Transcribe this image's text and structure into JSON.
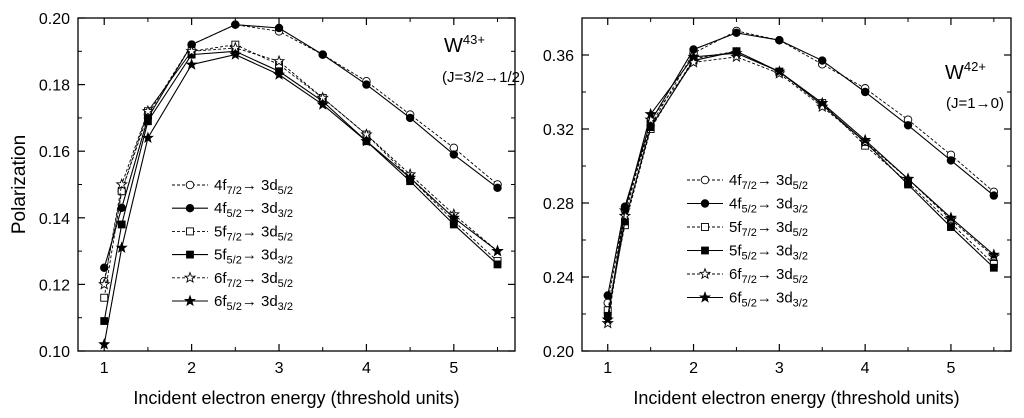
{
  "chart_data": [
    {
      "type": "line",
      "ylabel": "Polarization",
      "xlabel": "Incident electron energy (threshold units)",
      "ion_label": "W",
      "ion_charge": "43+",
      "transition_label": "(J=3/2→1/2)",
      "xlim": [
        0.7,
        5.7
      ],
      "ylim": [
        0.1,
        0.2
      ],
      "xticks": [
        "1",
        "2",
        "3",
        "4",
        "5"
      ],
      "yticks": [
        "0.10",
        "0.12",
        "0.14",
        "0.16",
        "0.18",
        "0.20"
      ],
      "grid": false,
      "legend_position": "bottom-left",
      "x": [
        1.0,
        1.2,
        1.5,
        2.0,
        2.5,
        3.0,
        3.5,
        4.0,
        4.5,
        5.0,
        5.5
      ],
      "series": [
        {
          "name": "4f7/2→ 3d5/2",
          "marker": "open-circle",
          "dashed": true,
          "values": [
            0.121,
            0.148,
            0.171,
            0.192,
            0.198,
            0.196,
            0.189,
            0.181,
            0.171,
            0.161,
            0.15
          ]
        },
        {
          "name": "4f5/2→ 3d3/2",
          "marker": "filled-circle",
          "dashed": false,
          "values": [
            0.125,
            0.143,
            0.17,
            0.192,
            0.198,
            0.197,
            0.189,
            0.18,
            0.17,
            0.159,
            0.149
          ]
        },
        {
          "name": "5f7/2→ 3d5/2",
          "marker": "open-square",
          "dashed": true,
          "values": [
            0.116,
            0.148,
            0.172,
            0.19,
            0.192,
            0.186,
            0.176,
            0.165,
            0.152,
            0.139,
            0.127
          ]
        },
        {
          "name": "5f5/2→ 3d3/2",
          "marker": "filled-square",
          "dashed": false,
          "values": [
            0.109,
            0.138,
            0.169,
            0.189,
            0.19,
            0.184,
            0.175,
            0.163,
            0.151,
            0.138,
            0.126
          ]
        },
        {
          "name": "6f7/2→ 3d5/2",
          "marker": "open-star",
          "dashed": true,
          "values": [
            0.12,
            0.15,
            0.172,
            0.19,
            0.191,
            0.187,
            0.176,
            0.165,
            0.153,
            0.141,
            0.13
          ]
        },
        {
          "name": "6f5/2→ 3d3/2",
          "marker": "filled-star",
          "dashed": false,
          "values": [
            0.102,
            0.131,
            0.164,
            0.186,
            0.189,
            0.183,
            0.174,
            0.163,
            0.152,
            0.14,
            0.13
          ]
        }
      ]
    },
    {
      "type": "line",
      "ylabel": "",
      "xlabel": "Incident electron energy (threshold units)",
      "ion_label": "W",
      "ion_charge": "42+",
      "transition_label": "(J=1→0)",
      "xlim": [
        0.7,
        5.7
      ],
      "ylim": [
        0.2,
        0.38
      ],
      "xticks": [
        "1",
        "2",
        "3",
        "4",
        "5"
      ],
      "yticks": [
        "0.20",
        "0.24",
        "0.28",
        "0.32",
        "0.36"
      ],
      "grid": false,
      "legend_position": "bottom-left",
      "x": [
        1.0,
        1.2,
        1.5,
        2.0,
        2.5,
        3.0,
        3.5,
        4.0,
        4.5,
        5.0,
        5.5
      ],
      "series": [
        {
          "name": "4f7/2→ 3d5/2",
          "marker": "open-circle",
          "dashed": true,
          "values": [
            0.226,
            0.276,
            0.322,
            0.361,
            0.373,
            0.368,
            0.355,
            0.342,
            0.325,
            0.306,
            0.286
          ]
        },
        {
          "name": "4f5/2→ 3d3/2",
          "marker": "filled-circle",
          "dashed": false,
          "values": [
            0.23,
            0.278,
            0.324,
            0.363,
            0.372,
            0.368,
            0.357,
            0.34,
            0.322,
            0.303,
            0.284
          ]
        },
        {
          "name": "5f7/2→ 3d5/2",
          "marker": "open-square",
          "dashed": true,
          "values": [
            0.222,
            0.268,
            0.32,
            0.358,
            0.362,
            0.351,
            0.334,
            0.311,
            0.291,
            0.269,
            0.247
          ]
        },
        {
          "name": "5f5/2→ 3d3/2",
          "marker": "filled-square",
          "dashed": false,
          "values": [
            0.219,
            0.27,
            0.321,
            0.357,
            0.362,
            0.351,
            0.333,
            0.313,
            0.29,
            0.267,
            0.245
          ]
        },
        {
          "name": "6f7/2→ 3d5/2",
          "marker": "open-star",
          "dashed": true,
          "values": [
            0.215,
            0.273,
            0.325,
            0.356,
            0.359,
            0.35,
            0.332,
            0.313,
            0.293,
            0.271,
            0.251
          ]
        },
        {
          "name": "6f5/2→ 3d3/2",
          "marker": "filled-star",
          "dashed": false,
          "values": [
            0.217,
            0.276,
            0.328,
            0.359,
            0.361,
            0.351,
            0.334,
            0.314,
            0.293,
            0.272,
            0.252
          ]
        }
      ]
    }
  ]
}
